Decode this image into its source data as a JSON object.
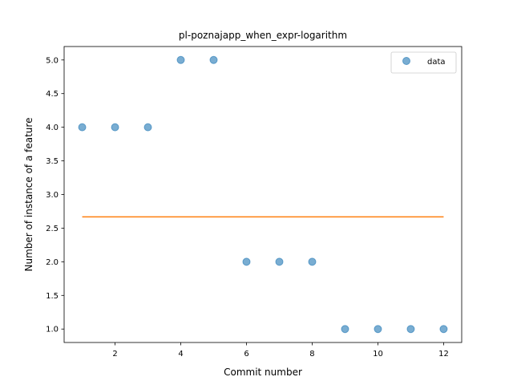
{
  "chart_data": {
    "type": "scatter",
    "title": "pl-poznajapp_when_expr-logarithm",
    "xlabel": "Commit number",
    "ylabel": "Number of instance of a feature",
    "xlim": [
      0.45,
      12.55
    ],
    "ylim": [
      0.8,
      5.2
    ],
    "xticks": [
      2,
      4,
      6,
      8,
      10,
      12
    ],
    "yticks": [
      1.0,
      1.5,
      2.0,
      2.5,
      3.0,
      3.5,
      4.0,
      4.5,
      5.0
    ],
    "xtick_labels": [
      "2",
      "4",
      "6",
      "8",
      "10",
      "12"
    ],
    "ytick_labels": [
      "1.0",
      "1.5",
      "2.0",
      "2.5",
      "3.0",
      "3.5",
      "4.0",
      "4.5",
      "5.0"
    ],
    "series": [
      {
        "name": "data",
        "kind": "scatter",
        "color": "#1f77b4",
        "x": [
          1,
          2,
          3,
          4,
          5,
          6,
          7,
          8,
          9,
          10,
          11,
          12
        ],
        "y": [
          4,
          4,
          4,
          5,
          5,
          2,
          2,
          2,
          1,
          1,
          1,
          1
        ]
      },
      {
        "kind": "line",
        "color": "#ff7f0e",
        "x": [
          1,
          12
        ],
        "y": [
          2.667,
          2.667
        ]
      }
    ],
    "legend": {
      "position": "top-right",
      "entries": [
        "data"
      ]
    },
    "grid": false
  }
}
